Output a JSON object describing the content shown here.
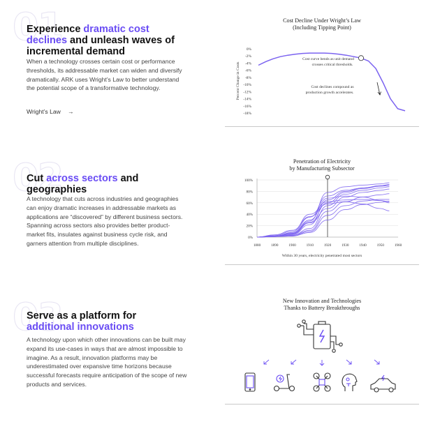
{
  "sections": [
    {
      "number": "01",
      "heading_pre": "Experience ",
      "heading_hl": "dramatic cost declines",
      "heading_post": " and unleash waves of incremental demand",
      "body": "When a technology crosses certain cost or performance thresholds, its addressable market can widen and diversify dramatically. ARK uses Wright’s Law to better understand the potential scope of a transformative technology.",
      "link": "Wright’s Law",
      "link_arrow": "→"
    },
    {
      "number": "02",
      "heading_pre": "Cut ",
      "heading_hl": "across sectors",
      "heading_post": " and geographies",
      "body": "A technology that cuts across industries and geographies can enjoy dramatic increases in addressable markets as applications are “discovered” by different business sectors. Spanning across sectors also provides better product-market fits, insulates against business cycle risk, and garners attention from multiple disciplines."
    },
    {
      "number": "03",
      "heading_pre": "Serve as a platform for ",
      "heading_hl": "additional innovations",
      "heading_post": "",
      "body": "A technology upon which other innovations can be built may expand its use-cases in ways that are almost impossible to imagine. As a result, innovation platforms may be underestimated over expansive time horizons because successful forecasts require anticipation of the scope of new products and services."
    }
  ],
  "colors": {
    "accent": "#6a4df4",
    "chart_line": "#7b63f0",
    "text": "#222222",
    "muted": "#444444"
  },
  "chart_data": [
    {
      "type": "line",
      "title": "Cost Decline Under Wright’s Law",
      "subtitle": "(Including Tipping Point)",
      "ylabel": "Percent Change in Costs",
      "yticks": [
        "0%",
        "-2%",
        "-4%",
        "-6%",
        "-8%",
        "-10%",
        "-12%",
        "-14%",
        "-16%",
        "-18%"
      ],
      "ylim": [
        -18,
        0
      ],
      "annotations": [
        "Cost curve bends as unit demand crosses critical thresholds.",
        "Cost declines compound as production growth accelerates."
      ],
      "x": [
        0,
        5,
        10,
        15,
        20,
        25,
        30,
        35,
        40,
        45,
        50,
        55,
        60,
        65,
        70,
        75,
        80,
        85,
        90,
        95,
        100
      ],
      "values": [
        -4.6,
        -3.6,
        -2.8,
        -2.2,
        -1.8,
        -1.5,
        -1.3,
        -1.2,
        -1.2,
        -1.2,
        -1.3,
        -1.5,
        -1.8,
        -2.2,
        -2.6,
        -3.4,
        -5.5,
        -9.5,
        -14.0,
        -16.8,
        -17.4
      ]
    },
    {
      "type": "line",
      "title": "Penetration of Electricity",
      "subtitle": "by Manufacturing Subsector",
      "xlabel": "Within 30 years, electricity penetrated most sectors",
      "x": [
        1880,
        1890,
        1900,
        1910,
        1920,
        1930,
        1940,
        1950,
        1955
      ],
      "xticks": [
        "1880",
        "1890",
        "1900",
        "1910",
        "1920",
        "1930",
        "1940",
        "1950",
        "1960"
      ],
      "yticks": [
        "0%",
        "20%",
        "40%",
        "60%",
        "80%",
        "100%"
      ],
      "ylim": [
        0,
        100
      ],
      "series": [
        {
          "values": [
            0,
            2,
            8,
            35,
            72,
            82,
            86,
            89,
            92
          ]
        },
        {
          "values": [
            0,
            1,
            6,
            28,
            78,
            88,
            91,
            93,
            95
          ]
        },
        {
          "values": [
            0,
            1,
            4,
            22,
            65,
            80,
            86,
            90,
            92
          ]
        },
        {
          "values": [
            0,
            3,
            10,
            40,
            62,
            65,
            66,
            64,
            62
          ]
        },
        {
          "values": [
            0,
            1,
            3,
            15,
            55,
            75,
            82,
            86,
            88
          ]
        },
        {
          "values": [
            0,
            2,
            5,
            25,
            50,
            70,
            78,
            82,
            84
          ]
        },
        {
          "values": [
            0,
            1,
            2,
            10,
            38,
            55,
            63,
            66,
            66
          ]
        },
        {
          "values": [
            0,
            2,
            7,
            30,
            68,
            72,
            70,
            64,
            60
          ]
        },
        {
          "values": [
            0,
            1,
            3,
            12,
            45,
            62,
            70,
            74,
            76
          ]
        },
        {
          "values": [
            0,
            4,
            12,
            36,
            58,
            62,
            58,
            50,
            46
          ]
        },
        {
          "values": [
            0,
            1,
            2,
            8,
            30,
            48,
            57,
            61,
            63
          ]
        },
        {
          "values": [
            0,
            2,
            6,
            26,
            60,
            78,
            85,
            89,
            90
          ]
        }
      ]
    }
  ],
  "figure3": {
    "title": "New Innovation and Technologies",
    "subtitle": "Thanks to Battery Breakthroughs",
    "icons": [
      "battery-icon",
      "smartphone-icon",
      "scooter-icon",
      "drone-icon",
      "robot-head-icon",
      "electric-car-icon"
    ]
  }
}
